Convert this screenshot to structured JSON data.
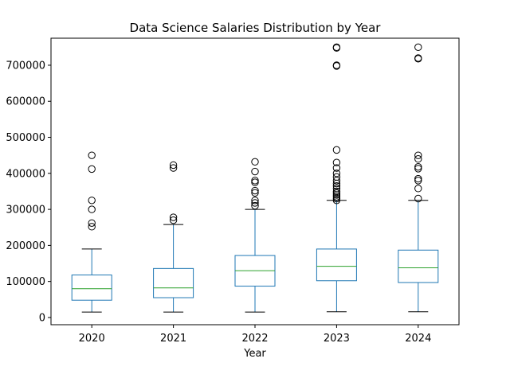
{
  "chart_data": {
    "type": "box",
    "title": "Data Science Salaries Distribution by Year",
    "xlabel": "Year",
    "ylabel": "",
    "ylim": [
      -20000,
      775000
    ],
    "yticks": [
      0,
      100000,
      200000,
      300000,
      400000,
      500000,
      600000,
      700000
    ],
    "ytick_labels": [
      "0",
      "100000",
      "200000",
      "300000",
      "400000",
      "500000",
      "600000",
      "700000"
    ],
    "grid": false,
    "colors": {
      "box": "#1f77b4",
      "median": "#2ca02c",
      "whisker_cap": "#000000",
      "outlier": "#000000"
    },
    "categories": [
      "2020",
      "2021",
      "2022",
      "2023",
      "2024"
    ],
    "boxes": [
      {
        "category": "2020",
        "whisker_low": 15000,
        "q1": 48000,
        "median": 80000,
        "q3": 118000,
        "whisker_high": 190000,
        "outliers": [
          450000,
          412000,
          325000,
          300000,
          262000,
          252000
        ]
      },
      {
        "category": "2021",
        "whisker_low": 15000,
        "q1": 55000,
        "median": 82000,
        "q3": 136000,
        "whisker_high": 258000,
        "outliers": [
          423000,
          415000,
          278000,
          270000
        ]
      },
      {
        "category": "2022",
        "whisker_low": 15000,
        "q1": 87000,
        "median": 130000,
        "q3": 172000,
        "whisker_high": 300000,
        "outliers": [
          432000,
          405000,
          380000,
          375000,
          352000,
          346000,
          325000,
          318000,
          310000
        ]
      },
      {
        "category": "2023",
        "whisker_low": 16000,
        "q1": 102000,
        "median": 142000,
        "q3": 190000,
        "whisker_high": 325000,
        "outliers": [
          750000,
          748000,
          700000,
          698000,
          465000,
          430000,
          415000,
          400000,
          390000,
          380000,
          372000,
          365000,
          358000,
          350000,
          345000,
          340000,
          335000,
          330000,
          325000
        ]
      },
      {
        "category": "2024",
        "whisker_low": 16000,
        "q1": 97000,
        "median": 138000,
        "q3": 187000,
        "whisker_high": 325000,
        "outliers": [
          750000,
          720000,
          718000,
          450000,
          440000,
          418000,
          413000,
          385000,
          380000,
          358000,
          330000
        ]
      }
    ]
  }
}
